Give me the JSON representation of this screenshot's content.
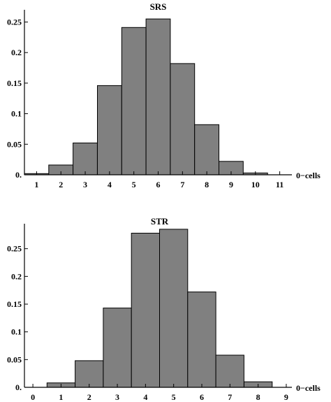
{
  "chart_data": [
    {
      "type": "bar",
      "title": "SRS",
      "xlabel": "0−cells",
      "ylabel": "",
      "x": [
        1,
        2,
        3,
        4,
        5,
        6,
        7,
        8,
        9,
        10
      ],
      "values": [
        0.002,
        0.016,
        0.052,
        0.146,
        0.241,
        0.255,
        0.182,
        0.082,
        0.022,
        0.003
      ],
      "xlim": [
        0.5,
        11.5
      ],
      "ylim": [
        0,
        0.27
      ],
      "xticks": [
        "1",
        "2",
        "3",
        "4",
        "5",
        "6",
        "7",
        "8",
        "9",
        "10",
        "11"
      ],
      "yticks": [
        "0.",
        "0.05",
        "0.1",
        "0.15",
        "0.2",
        "0.25"
      ],
      "grid": false
    },
    {
      "type": "bar",
      "title": "STR",
      "xlabel": "0−cells",
      "ylabel": "",
      "x": [
        1,
        2,
        3,
        4,
        5,
        6,
        7,
        8
      ],
      "values": [
        0.008,
        0.048,
        0.143,
        0.278,
        0.285,
        0.172,
        0.058,
        0.01
      ],
      "xlim": [
        -0.3,
        9.2
      ],
      "ylim": [
        0,
        0.295
      ],
      "xticks": [
        "0",
        "1",
        "2",
        "3",
        "4",
        "5",
        "6",
        "7",
        "8",
        "9"
      ],
      "yticks": [
        "0.",
        "0.05",
        "0.1",
        "0.15",
        "0.2",
        "0.25"
      ],
      "grid": false
    }
  ]
}
